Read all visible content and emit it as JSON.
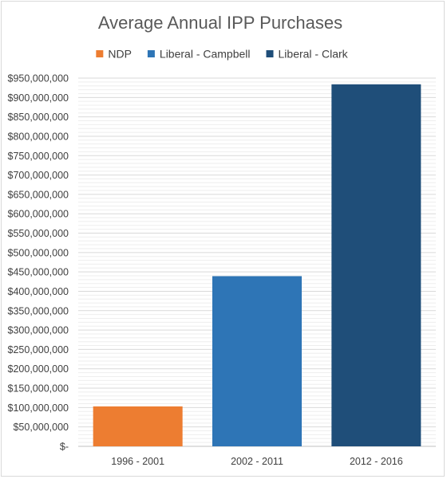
{
  "chart_data": {
    "type": "bar",
    "title": "Average Annual IPP Purchases",
    "categories": [
      "1996 - 2001",
      "2002 - 2011",
      "2012 - 2016"
    ],
    "series": [
      {
        "name": "NDP",
        "color": "#ED7D31",
        "category": "1996 - 2001",
        "value": 103000000
      },
      {
        "name": "Liberal - Campbell",
        "color": "#2E75B6",
        "category": "2002 - 2011",
        "value": 439000000
      },
      {
        "name": "Liberal - Clark",
        "color": "#1F4E79",
        "category": "2012 - 2016",
        "value": 934000000
      }
    ],
    "ylim": [
      0,
      950000000
    ],
    "y_tick_labels": [
      "$-",
      "$50,000,000",
      "$100,000,000",
      "$150,000,000",
      "$200,000,000",
      "$250,000,000",
      "$300,000,000",
      "$350,000,000",
      "$400,000,000",
      "$450,000,000",
      "$500,000,000",
      "$550,000,000",
      "$600,000,000",
      "$650,000,000",
      "$700,000,000",
      "$750,000,000",
      "$800,000,000",
      "$850,000,000",
      "$900,000,000",
      "$950,000,000"
    ],
    "legend_position": "top",
    "grid": true,
    "gridline_color": "#d9d9d9",
    "xlabel": "",
    "ylabel": ""
  }
}
